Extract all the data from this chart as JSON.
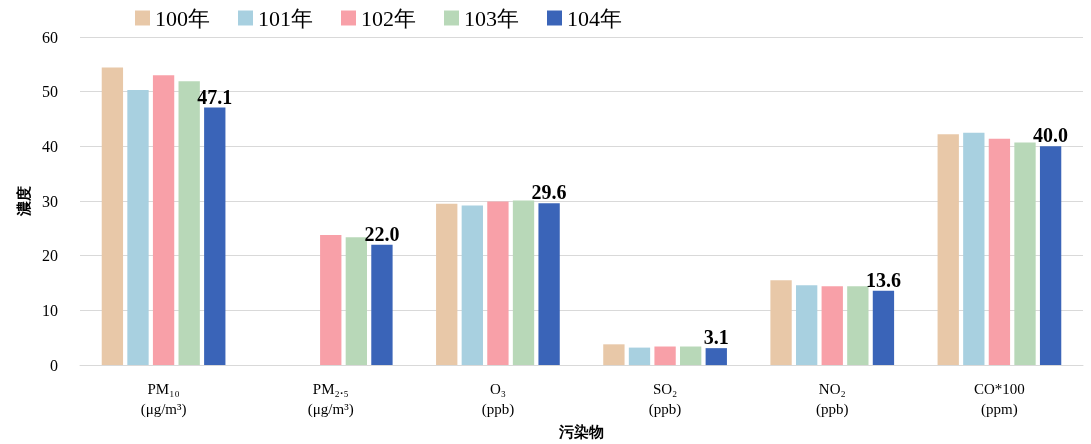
{
  "chart_data": {
    "type": "bar",
    "xlabel": "污染物",
    "ylabel": "濃度",
    "categories": [
      "PM₁₀\n(μg/m³)",
      "PM₂.₅\n(μg/m³)",
      "O₃\n(ppb)",
      "SO₂\n(ppb)",
      "NO₂\n(ppb)",
      "CO*100\n(ppm)"
    ],
    "series": [
      {
        "name": "100年",
        "color": "#e8c8a8",
        "values": [
          54.4,
          null,
          29.5,
          3.8,
          15.5,
          42.2
        ]
      },
      {
        "name": "101年",
        "color": "#a8d0e0",
        "values": [
          50.3,
          null,
          29.2,
          3.2,
          14.6,
          42.5
        ]
      },
      {
        "name": "102年",
        "color": "#f8a0a8",
        "values": [
          53.0,
          23.8,
          29.9,
          3.4,
          14.4,
          41.4
        ]
      },
      {
        "name": "103年",
        "color": "#b8d8b8",
        "values": [
          51.9,
          23.4,
          30.1,
          3.4,
          14.4,
          40.7
        ]
      },
      {
        "name": "104年",
        "color": "#3a64b8",
        "values": [
          47.1,
          22.0,
          29.6,
          3.1,
          13.6,
          40.0
        ],
        "value_labels": [
          "47.1",
          "22.0",
          "29.6",
          "3.1",
          "13.6",
          "40.0"
        ]
      }
    ],
    "ylim": [
      0,
      60
    ],
    "yticks": [
      0,
      10,
      20,
      30,
      40,
      50,
      60
    ],
    "grid": "y",
    "legend": "top"
  }
}
